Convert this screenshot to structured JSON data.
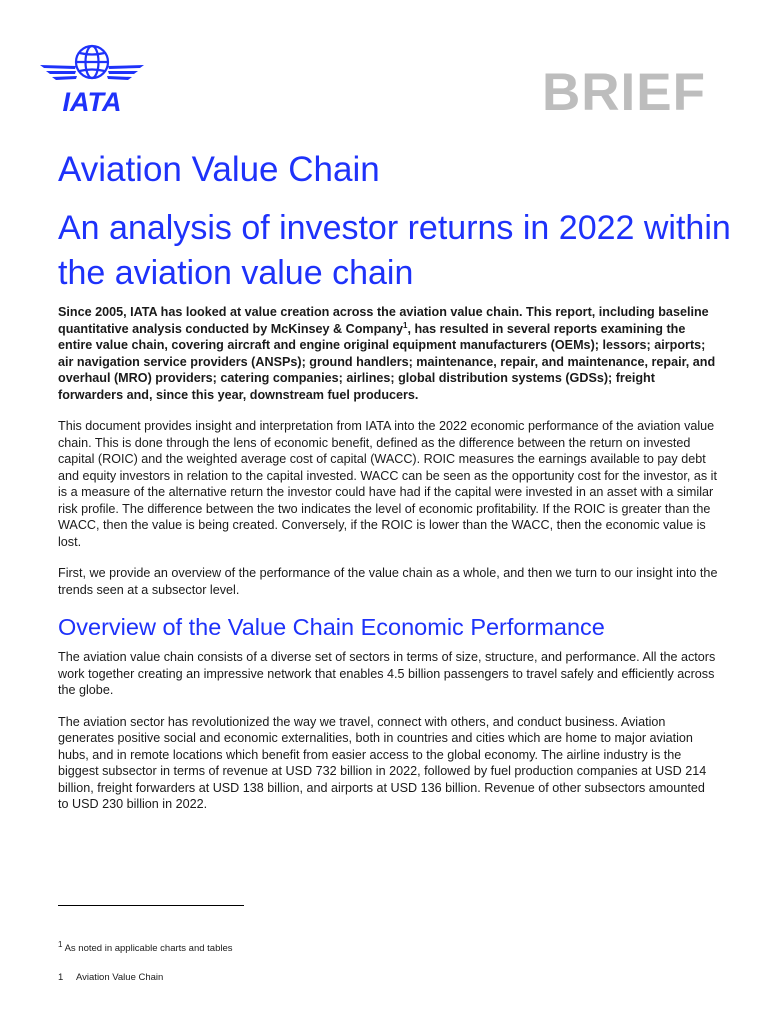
{
  "header": {
    "logo_text": "IATA",
    "brief_label": "BRIEF"
  },
  "colors": {
    "accent": "#1e32fa",
    "brief_grey": "#bdbdbd"
  },
  "title": "Aviation Value Chain",
  "subtitle": "An analysis of investor returns in 2022 within the aviation value chain",
  "intro": {
    "part1": "Since 2005, IATA has looked at value creation across the aviation value chain. This report, including baseline quantitative analysis conducted by McKinsey & Company",
    "footnote_ref": "1",
    "part2": ", has resulted in several reports examining the entire value chain, covering aircraft and engine original equipment manufacturers (OEMs); lessors; airports; air navigation service providers (ANSPs); ground handlers; maintenance, repair, and maintenance, repair, and overhaul (MRO) providers; catering companies; airlines; global distribution systems (GDSs); freight forwarders and, since this year, downstream fuel producers."
  },
  "paragraphs": {
    "p1": "This document provides insight and interpretation from IATA into the 2022 economic performance of the aviation value chain. This is done through the lens of economic benefit, defined as the difference between the return on invested capital (ROIC) and the weighted average cost of capital (WACC). ROIC measures the earnings available to pay debt and equity investors in relation to the capital invested. WACC can be seen as the opportunity cost for the investor, as it is a measure of the alternative return the investor could have had if the capital were invested in an asset with a similar risk profile. The difference between the two indicates the level of economic profitability. If the ROIC is greater than the WACC, then the value is being created. Conversely, if the ROIC is lower than the WACC, then the economic value is lost.",
    "p2": "First, we provide an overview of the performance of the value chain as a whole, and then we turn to our insight into the trends seen at a subsector level.",
    "p3": "The aviation value chain consists of a diverse set of sectors in terms of size, structure, and performance. All the actors work together creating an impressive network that enables 4.5 billion passengers to travel safely and efficiently across the globe.",
    "p4": "The aviation sector has revolutionized the way we travel, connect with others, and conduct business. Aviation generates positive social and economic externalities, both in countries and cities which are home to major aviation hubs, and in remote locations which benefit from easier access to the global economy. The airline industry is the biggest subsector in terms of revenue at USD 732 billion in 2022, followed by fuel production companies at USD 214 billion, freight forwarders at USD 138 billion, and airports at USD 136 billion. Revenue of other subsectors amounted to USD 230 billion in 2022."
  },
  "section_heading": "Overview of the Value Chain Economic Performance",
  "footnote": {
    "marker": "1",
    "text": " As noted in applicable charts and tables"
  },
  "footer": {
    "page_number": "1",
    "label": "Aviation Value Chain"
  }
}
